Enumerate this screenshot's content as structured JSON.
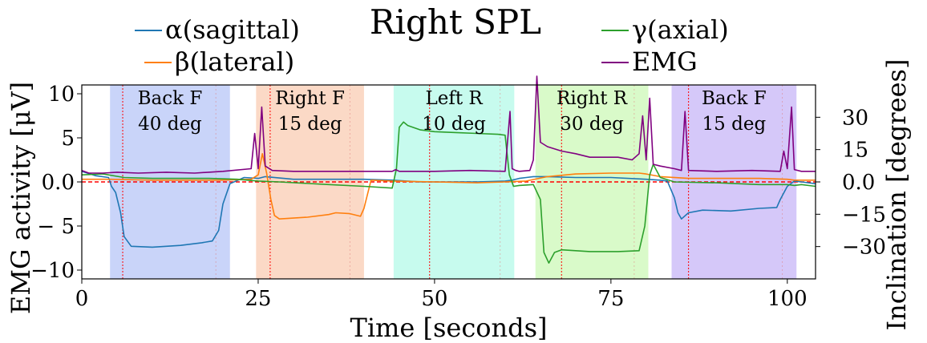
{
  "chart_data": {
    "type": "line",
    "title": "Right SPL",
    "xlabel": "Time [seconds]",
    "ylabel_left": "EMG activity [μV]",
    "ylabel_right": "Inclination [degrees]",
    "xlim": [
      0,
      104
    ],
    "ylim_left": [
      -11,
      11
    ],
    "ylim_right": [
      -45,
      45
    ],
    "xticks": [
      0,
      25,
      50,
      75,
      100
    ],
    "yticks_left": [
      10,
      5,
      0.0,
      -5,
      -10
    ],
    "ytick_labels_left": [
      "10",
      "5",
      "0.0",
      "− 5",
      "−10"
    ],
    "yticks_right": [
      30,
      15,
      0.0,
      -15,
      -30
    ],
    "ytick_labels_right": [
      "30",
      "15",
      "0.0",
      "−15",
      "−30"
    ],
    "legend": [
      {
        "name": "α(sagittal)",
        "color": "#1f77b4"
      },
      {
        "name": "β(lateral)",
        "color": "#ff7f0e"
      },
      {
        "name": "γ(axial)",
        "color": "#2ca02c"
      },
      {
        "name": "EMG",
        "color": "#800080"
      }
    ],
    "regions": [
      {
        "start": 4,
        "end": 21,
        "label1": "Back F",
        "label2": "40 deg",
        "color": "#c9d4f9",
        "marker": 5.8
      },
      {
        "start": 24.7,
        "end": 40,
        "label1": "Right F",
        "label2": "15 deg",
        "color": "#fbd9c6",
        "marker": 26.7
      },
      {
        "start": 44.2,
        "end": 61.3,
        "label1": "Left R",
        "label2": "10 deg",
        "color": "#c7fbee",
        "marker": 49.3
      },
      {
        "start": 64.3,
        "end": 80.3,
        "label1": "Right R",
        "label2": "30 deg",
        "color": "#d9fac9",
        "marker": 68.0
      },
      {
        "start": 83.6,
        "end": 101.3,
        "label1": "Back F",
        "label2": "15 deg",
        "color": "#d5c8f9",
        "marker": 86.0
      }
    ],
    "zero_line_color": "#ff0000",
    "series": [
      {
        "name": "α(sagittal)",
        "axis": "left",
        "color": "#1f77b4",
        "x": [
          0,
          2,
          3.8,
          4.2,
          4.8,
          5.5,
          6,
          7,
          10,
          14,
          17,
          18.5,
          19.4,
          20,
          21,
          23,
          25,
          26,
          30,
          40,
          44,
          48,
          52,
          56,
          60,
          61,
          62,
          63,
          64,
          66,
          70,
          75,
          80,
          82,
          83,
          84,
          84.5,
          85,
          86,
          88,
          92,
          96,
          98.5,
          99,
          100,
          101,
          102,
          104
        ],
        "y": [
          1.2,
          0.7,
          0.5,
          -0.5,
          -1.2,
          -3.5,
          -6.2,
          -7.3,
          -7.4,
          -7.2,
          -6.9,
          -6.7,
          -5.5,
          -2.5,
          -0.2,
          0.5,
          0.4,
          0.6,
          0.3,
          0.3,
          0.2,
          0.0,
          0.0,
          0.0,
          0.1,
          0.2,
          0.4,
          0.5,
          0.6,
          0.6,
          0.5,
          0.5,
          0.3,
          0.2,
          0.1,
          -1.8,
          -3.5,
          -4.2,
          -3.5,
          -3.2,
          -3.3,
          -3.0,
          -2.9,
          -2.0,
          -0.5,
          0.1,
          0.0,
          -0.2
        ]
      },
      {
        "name": "β(lateral)",
        "axis": "left",
        "color": "#ff7f0e",
        "x": [
          0,
          4,
          10,
          20,
          24,
          25,
          25.6,
          26.2,
          26.8,
          27.3,
          28,
          32,
          35,
          36,
          38,
          39.5,
          40,
          41,
          44,
          50,
          56,
          60,
          63,
          66,
          70,
          75,
          79,
          80,
          82,
          86,
          92,
          96,
          100,
          101,
          102,
          104
        ],
        "y": [
          0.3,
          0.3,
          0.2,
          0.2,
          0.3,
          0.8,
          3.2,
          1.0,
          -2.0,
          -3.8,
          -4.2,
          -4.0,
          -3.7,
          -3.5,
          -3.6,
          -3.9,
          -3.0,
          0.2,
          0.1,
          0.0,
          -0.1,
          0.0,
          0.1,
          0.6,
          0.9,
          1.0,
          1.0,
          0.9,
          0.6,
          0.4,
          0.4,
          0.4,
          0.3,
          0.2,
          0.2,
          0.2
        ]
      },
      {
        "name": "γ(axial)",
        "axis": "left",
        "color": "#2ca02c",
        "x": [
          0,
          3,
          6,
          10,
          18,
          22,
          25,
          28,
          35,
          40,
          44,
          44.6,
          45,
          45.6,
          46.2,
          48,
          50,
          53,
          56,
          59,
          60,
          60.6,
          61.2,
          62,
          64,
          65,
          65.5,
          66.2,
          67,
          68,
          72,
          76,
          79,
          79.8,
          80.5,
          81,
          82,
          84,
          90,
          96,
          100,
          101,
          102,
          104
        ],
        "y": [
          0.8,
          0.9,
          0.5,
          0.4,
          0.4,
          0.3,
          0.1,
          0.0,
          -0.3,
          -0.5,
          -0.7,
          1.5,
          6.2,
          6.8,
          6.4,
          5.9,
          5.7,
          5.6,
          5.5,
          5.4,
          5.3,
          0.8,
          -0.5,
          -0.4,
          -0.3,
          -2.0,
          -8.0,
          -9.2,
          -8.0,
          -7.7,
          -7.9,
          -7.9,
          -7.8,
          -5.0,
          0.8,
          2.0,
          0.5,
          0.0,
          -0.1,
          -0.3,
          -0.3,
          -0.4,
          -0.3,
          -0.5
        ]
      },
      {
        "name": "EMG",
        "axis": "left",
        "color": "#800080",
        "x": [
          0,
          1,
          3,
          5,
          8,
          12,
          16,
          20,
          24,
          24.5,
          25,
          25.5,
          26,
          27,
          30,
          35,
          40,
          44,
          44.5,
          45,
          46,
          50,
          55,
          60,
          60.7,
          61,
          61.5,
          62,
          63.5,
          64,
          64.5,
          65,
          66,
          68,
          70,
          72,
          74,
          76,
          78,
          79,
          79.5,
          80,
          80.5,
          81,
          82,
          84,
          85,
          85.5,
          86,
          90,
          95,
          99,
          99.5,
          100,
          100.6,
          101,
          102,
          104
        ],
        "y": [
          1.3,
          1.0,
          1.0,
          1.1,
          1.0,
          1.1,
          1.0,
          1.2,
          1.5,
          5.5,
          1.5,
          8.5,
          1.8,
          1.3,
          1.2,
          1.2,
          1.2,
          1.2,
          1.4,
          1.2,
          1.2,
          1.2,
          1.3,
          1.2,
          8.0,
          1.5,
          1.3,
          1.2,
          1.3,
          2.5,
          12.0,
          4.5,
          4.0,
          3.5,
          3.2,
          2.8,
          2.8,
          2.8,
          2.5,
          3.2,
          7.5,
          2.5,
          9.5,
          2.0,
          1.8,
          1.5,
          1.3,
          8.0,
          1.3,
          1.2,
          1.3,
          1.2,
          3.5,
          1.5,
          8.5,
          1.4,
          1.2,
          1.2
        ]
      }
    ]
  }
}
